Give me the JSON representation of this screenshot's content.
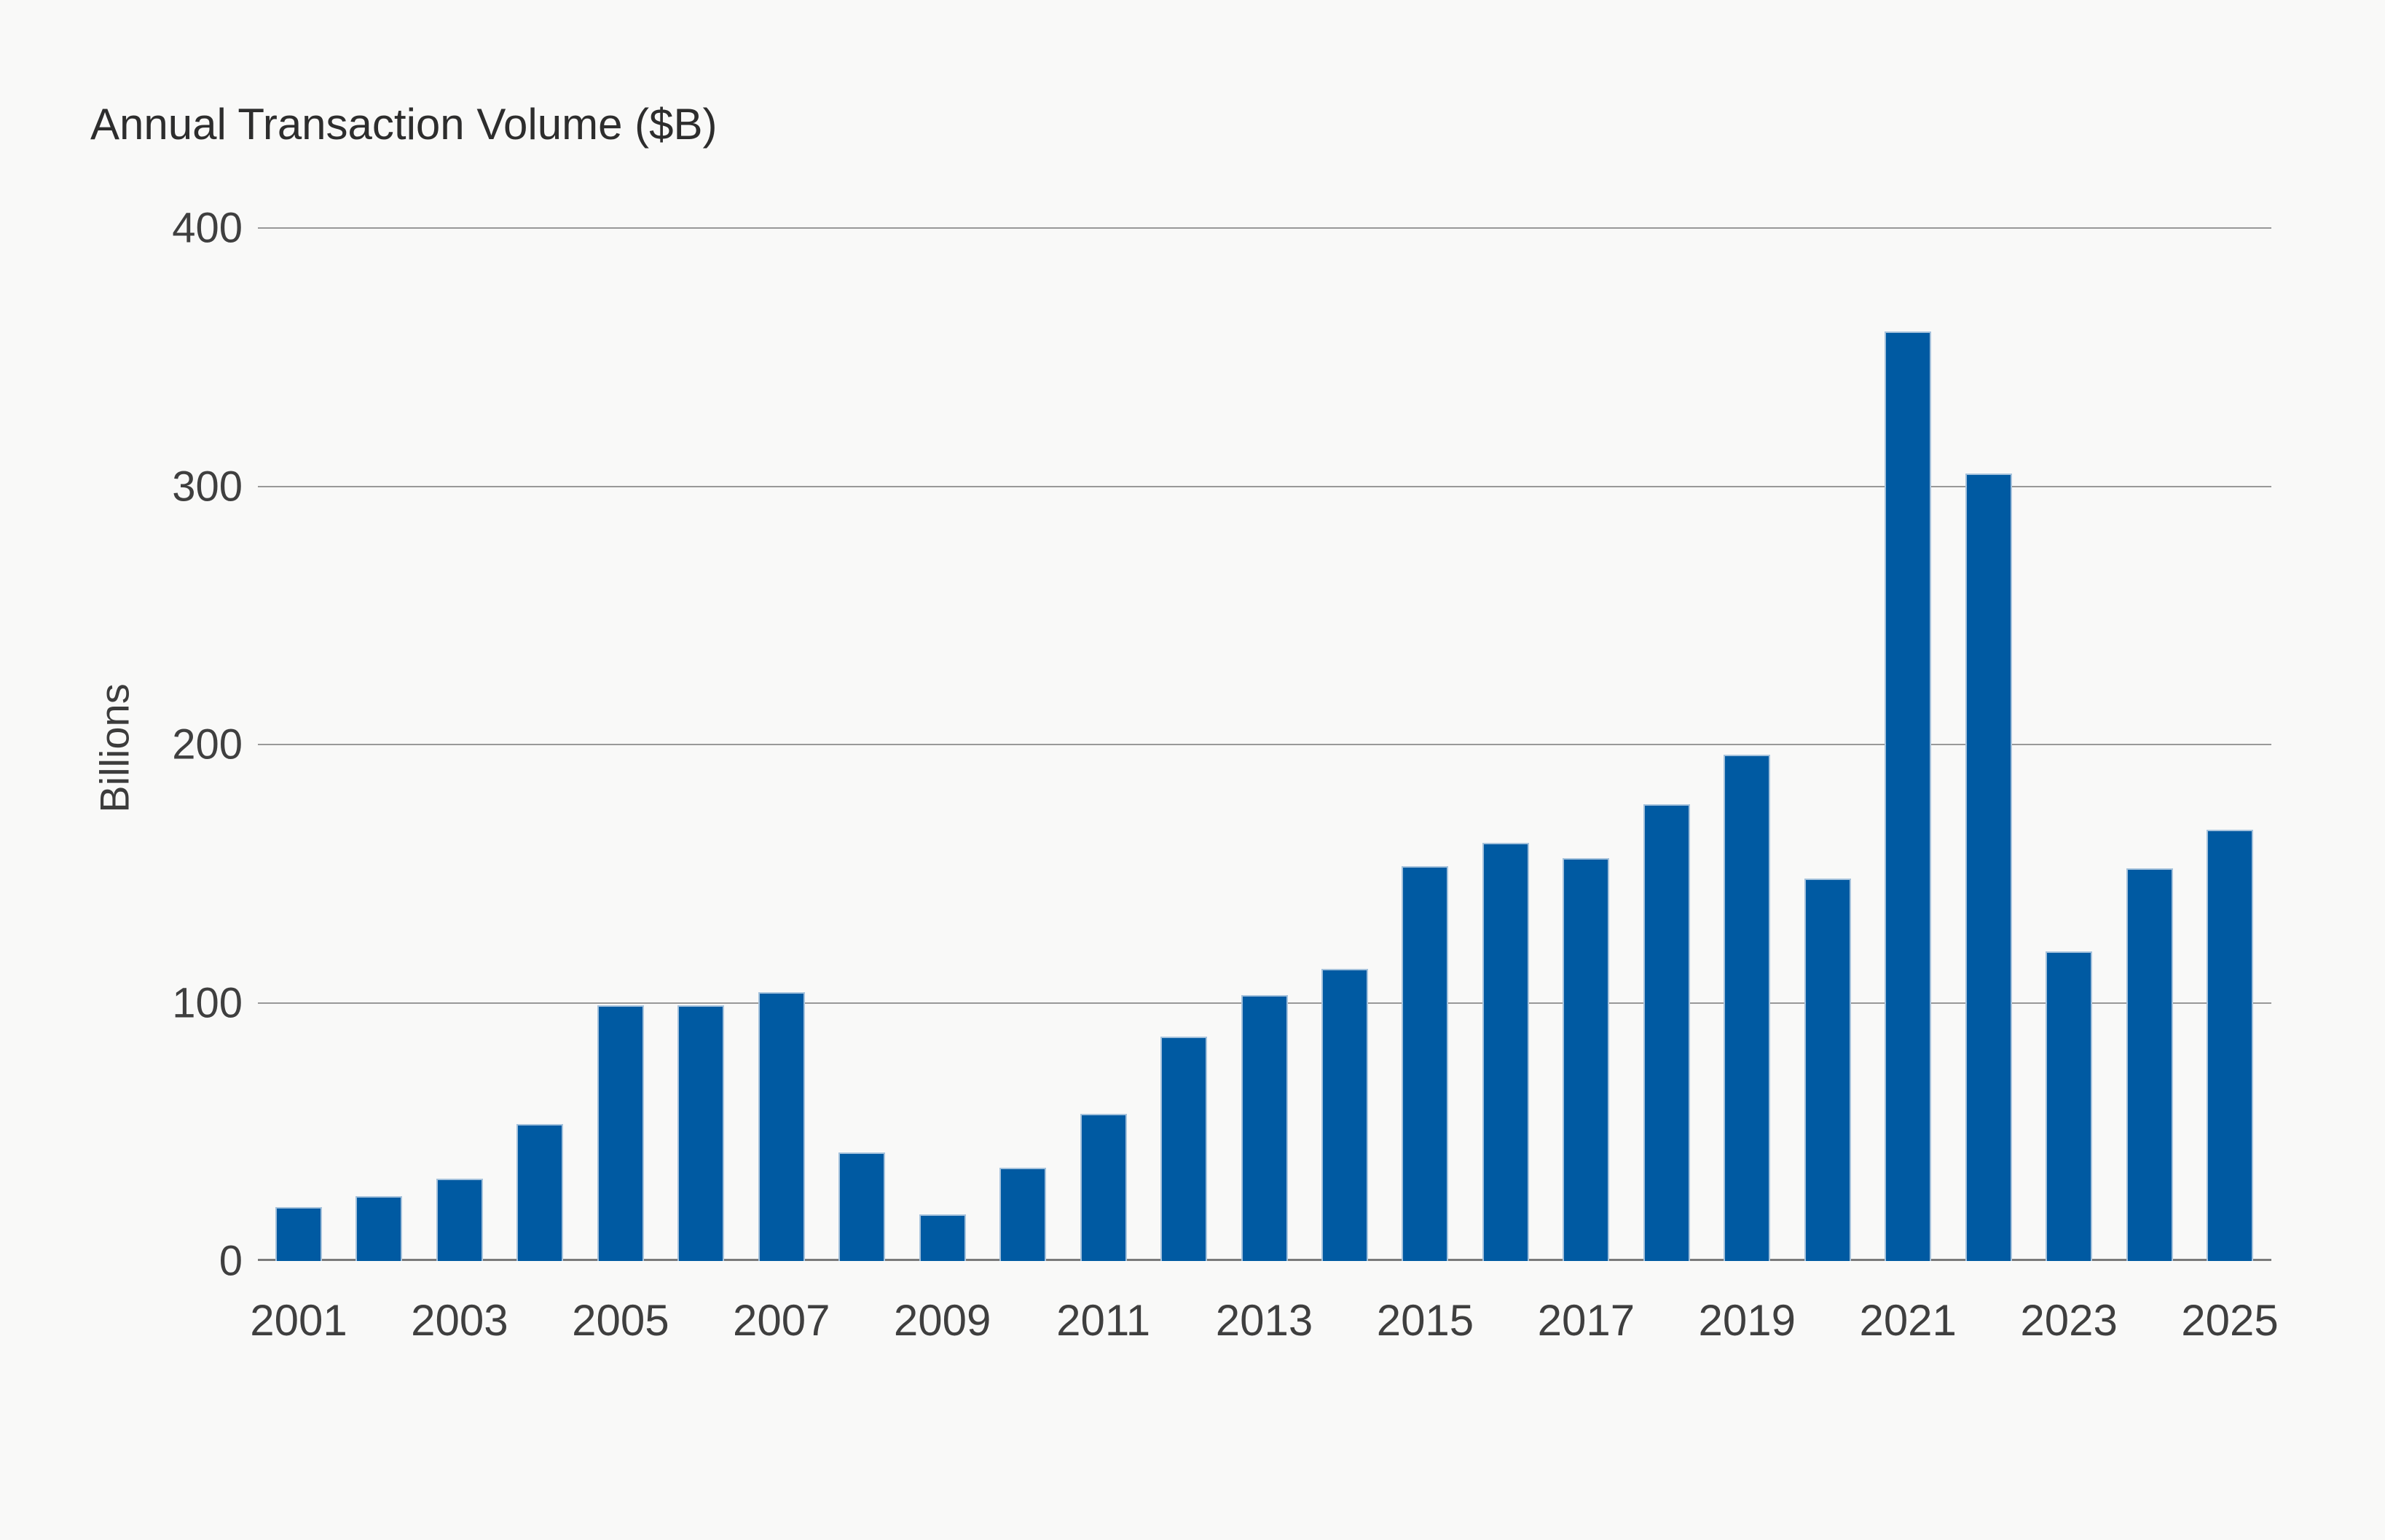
{
  "chart_data": {
    "type": "bar",
    "title": "Annual Transaction Volume ($B)",
    "ylabel": "Billions",
    "xlabel": "",
    "categories": [
      2001,
      2002,
      2003,
      2004,
      2005,
      2006,
      2007,
      2008,
      2009,
      2010,
      2011,
      2012,
      2013,
      2014,
      2015,
      2016,
      2017,
      2018,
      2019,
      2020,
      2021,
      2022,
      2023,
      2024,
      2025
    ],
    "values": [
      21,
      25,
      32,
      53,
      99,
      99,
      104,
      42,
      18,
      36,
      57,
      87,
      103,
      113,
      153,
      162,
      156,
      177,
      196,
      148,
      360,
      305,
      120,
      152,
      167
    ],
    "ylim": [
      0,
      400
    ],
    "yticks": [
      0,
      100,
      200,
      300,
      400
    ],
    "xtick_labels": [
      "2001",
      "2003",
      "2005",
      "2007",
      "2009",
      "2011",
      "2013",
      "2015",
      "2017",
      "2019",
      "2021",
      "2023",
      "2025"
    ],
    "grid": "horizontal",
    "legend": "none",
    "colors": {
      "bar_fill": "#005aa2",
      "bar_stroke": "#a5c2dc",
      "background": "#f9f9f8",
      "gridline": "#999999",
      "zero_axis": "#7b7b7b",
      "title_text": "#2d2d2d",
      "tick_text": "#3f3f3f"
    }
  }
}
